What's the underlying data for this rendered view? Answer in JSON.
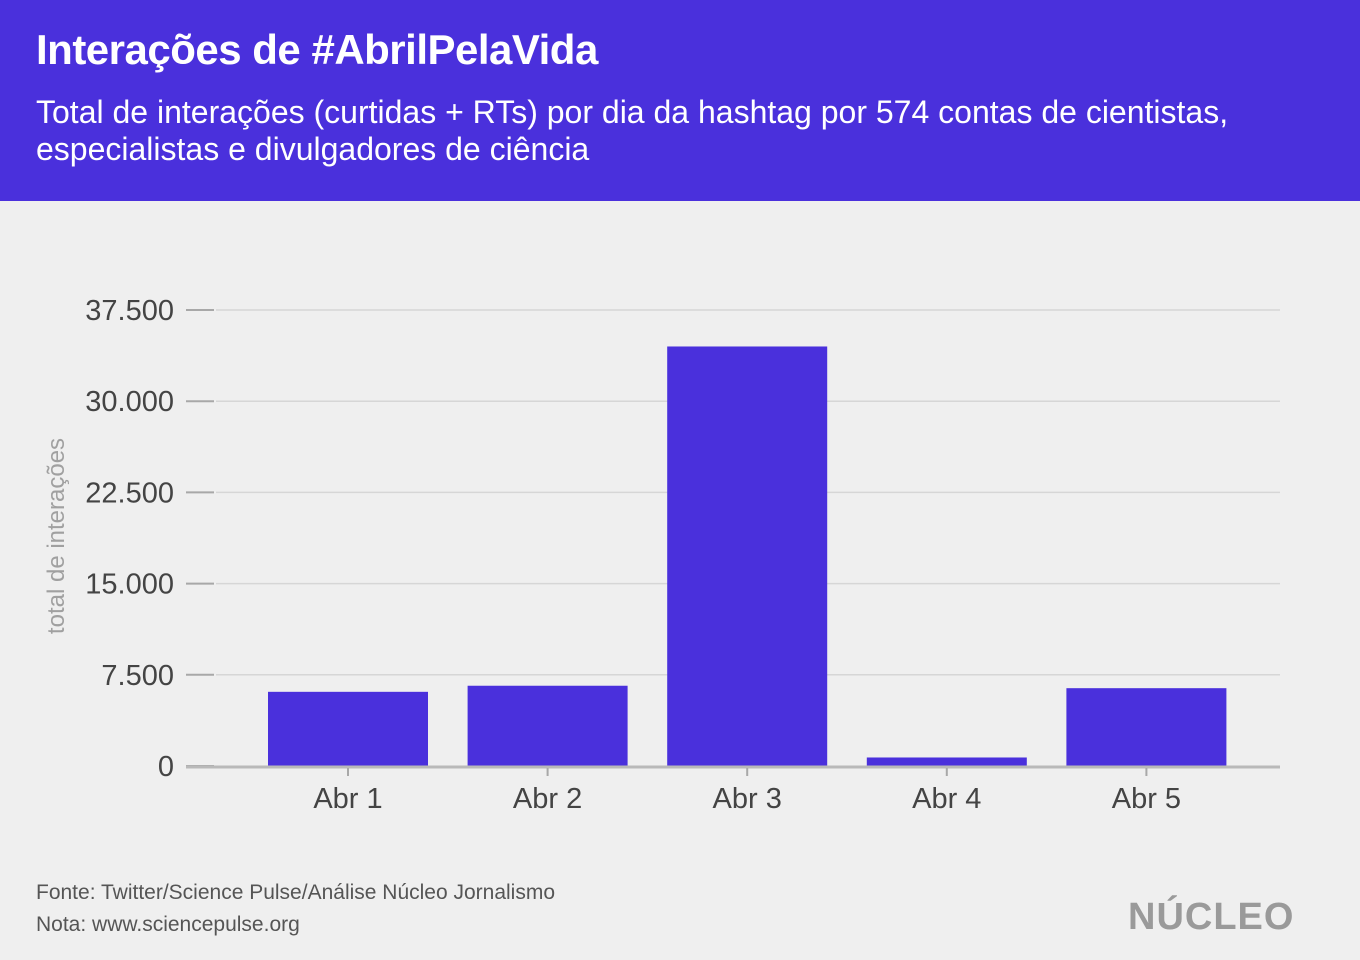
{
  "header": {
    "title": "Interações de #AbrilPelaVida",
    "subtitle": "Total de interações (curtidas + RTs) por dia da hashtag por 574 contas de cientistas, especialistas e divulgadores de ciência"
  },
  "footer": {
    "source": "Fonte: Twitter/Science Pulse/Análise Núcleo Jornalismo",
    "note": "Nota: www.sciencepulse.org",
    "logo": "NÚCLEO"
  },
  "colors": {
    "header_bg": "#4a30dc",
    "bar": "#4a30dc",
    "background": "#efefef",
    "grid": "#d6d6d6",
    "baseline": "#b9b9b9"
  },
  "chart_data": {
    "type": "bar",
    "categories": [
      "Abr 1",
      "Abr 2",
      "Abr 3",
      "Abr 4",
      "Abr 5"
    ],
    "values": [
      6100,
      6600,
      34500,
      700,
      6400
    ],
    "ylabel": "total de interações",
    "xlabel": "",
    "ylim": [
      0,
      37500
    ],
    "yticks": [
      0,
      7500,
      15000,
      22500,
      30000,
      37500
    ],
    "ytick_labels": [
      "0",
      "7.500",
      "15.000",
      "22.500",
      "30.000",
      "37.500"
    ],
    "grid": true
  }
}
